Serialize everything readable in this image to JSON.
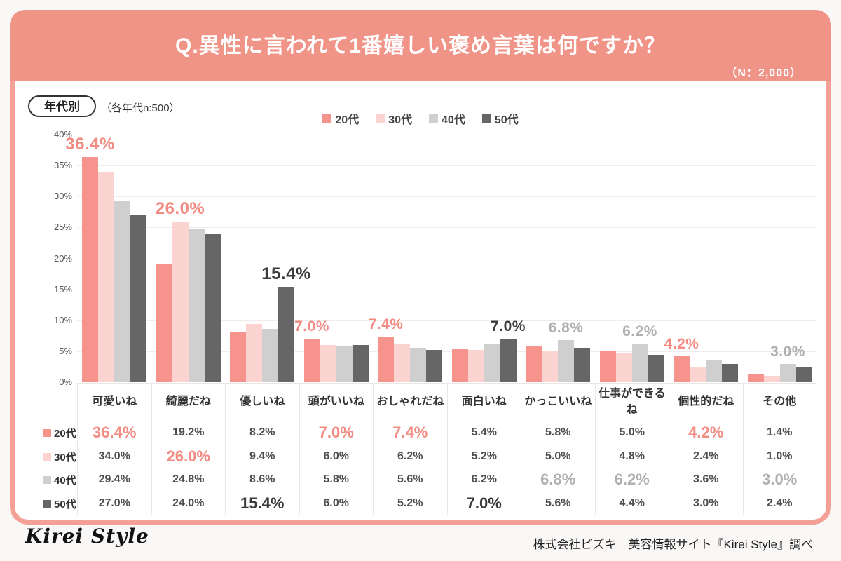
{
  "header": {
    "title": "Q.異性に言われて1番嬉しい褒め言葉は何ですか？",
    "sample_note": "（N：2,000）"
  },
  "meta": {
    "badge": "年代別",
    "note": "（各年代n:500）"
  },
  "colors": {
    "accent_salmon": "#F09488",
    "card_border": "#F4A096",
    "annotation_salmon": "#F28B82",
    "annotation_gray": "#B0B0B0",
    "annotation_dark": "#3B3B3B"
  },
  "legend": [
    {
      "label": "20代",
      "color": "#F5938C"
    },
    {
      "label": "30代",
      "color": "#FBD3D1"
    },
    {
      "label": "40代",
      "color": "#CFCFCF"
    },
    {
      "label": "50代",
      "color": "#666666"
    }
  ],
  "chart_data": {
    "type": "bar",
    "title": "Q.異性に言われて1番嬉しい褒め言葉は何ですか？",
    "xlabel": "",
    "ylabel": "",
    "ylim": [
      0,
      40
    ],
    "ytick_step": 5,
    "ytick_suffix": "%",
    "grid": true,
    "legend_position": "top",
    "categories": [
      "可愛いね",
      "綺麗だね",
      "優しいね",
      "頭がいいね",
      "おしゃれだね",
      "面白いね",
      "かっこいいね",
      "仕事ができるね",
      "個性的だね",
      "その他"
    ],
    "series": [
      {
        "name": "20代",
        "color": "#F5938C",
        "values": [
          36.4,
          19.2,
          8.2,
          7.0,
          7.4,
          5.4,
          5.8,
          5.0,
          4.2,
          1.4
        ]
      },
      {
        "name": "30代",
        "color": "#FBD3D1",
        "values": [
          34.0,
          26.0,
          9.4,
          6.0,
          6.2,
          5.2,
          5.0,
          4.8,
          2.4,
          1.0
        ]
      },
      {
        "name": "40代",
        "color": "#CFCFCF",
        "values": [
          29.4,
          24.8,
          8.6,
          5.8,
          5.6,
          6.2,
          6.8,
          6.2,
          3.6,
          3.0
        ]
      },
      {
        "name": "50代",
        "color": "#666666",
        "values": [
          27.0,
          24.0,
          15.4,
          6.0,
          5.2,
          7.0,
          5.6,
          4.4,
          3.0,
          2.4
        ]
      }
    ],
    "annotations": [
      {
        "category_index": 0,
        "series_index": 0,
        "text": "36.4%",
        "color": "#F28B82",
        "big": true
      },
      {
        "category_index": 1,
        "series_index": 1,
        "text": "26.0%",
        "color": "#F28B82",
        "big": true
      },
      {
        "category_index": 2,
        "series_index": 3,
        "text": "15.4%",
        "color": "#3B3B3B",
        "big": true
      },
      {
        "category_index": 3,
        "series_index": 0,
        "text": "7.0%",
        "color": "#F28B82",
        "big": false
      },
      {
        "category_index": 4,
        "series_index": 0,
        "text": "7.4%",
        "color": "#F28B82",
        "big": false
      },
      {
        "category_index": 5,
        "series_index": 3,
        "text": "7.0%",
        "color": "#3B3B3B",
        "big": false
      },
      {
        "category_index": 6,
        "series_index": 2,
        "text": "6.8%",
        "color": "#B0B0B0",
        "big": false
      },
      {
        "category_index": 7,
        "series_index": 2,
        "text": "6.2%",
        "color": "#B0B0B0",
        "big": false
      },
      {
        "category_index": 8,
        "series_index": 0,
        "text": "4.2%",
        "color": "#F28B82",
        "big": false
      },
      {
        "category_index": 9,
        "series_index": 2,
        "text": "3.0%",
        "color": "#B0B0B0",
        "big": false
      }
    ]
  },
  "table": {
    "rows": [
      {
        "label": "20代",
        "color": "#F5938C",
        "highlight_color": "#F28B82",
        "highlights": [
          0,
          3,
          4,
          8
        ],
        "values": [
          "36.4%",
          "19.2%",
          "8.2%",
          "7.0%",
          "7.4%",
          "5.4%",
          "5.8%",
          "5.0%",
          "4.2%",
          "1.4%"
        ]
      },
      {
        "label": "30代",
        "color": "#FBD3D1",
        "highlight_color": "#F28B82",
        "highlights": [
          1
        ],
        "values": [
          "34.0%",
          "26.0%",
          "9.4%",
          "6.0%",
          "6.2%",
          "5.2%",
          "5.0%",
          "4.8%",
          "2.4%",
          "1.0%"
        ]
      },
      {
        "label": "40代",
        "color": "#CFCFCF",
        "highlight_color": "#B0B0B0",
        "highlights": [
          6,
          7,
          9
        ],
        "values": [
          "29.4%",
          "24.8%",
          "8.6%",
          "5.8%",
          "5.6%",
          "6.2%",
          "6.8%",
          "6.2%",
          "3.6%",
          "3.0%"
        ]
      },
      {
        "label": "50代",
        "color": "#666666",
        "highlight_color": "#3B3B3B",
        "highlights": [
          2,
          5
        ],
        "values": [
          "27.0%",
          "24.0%",
          "15.4%",
          "6.0%",
          "5.2%",
          "7.0%",
          "5.6%",
          "4.4%",
          "3.0%",
          "2.4%"
        ]
      }
    ]
  },
  "footer": {
    "logo": "Kirei Style",
    "credit": "株式会社ビズキ　美容情報サイト『Kirei Style』調べ"
  }
}
